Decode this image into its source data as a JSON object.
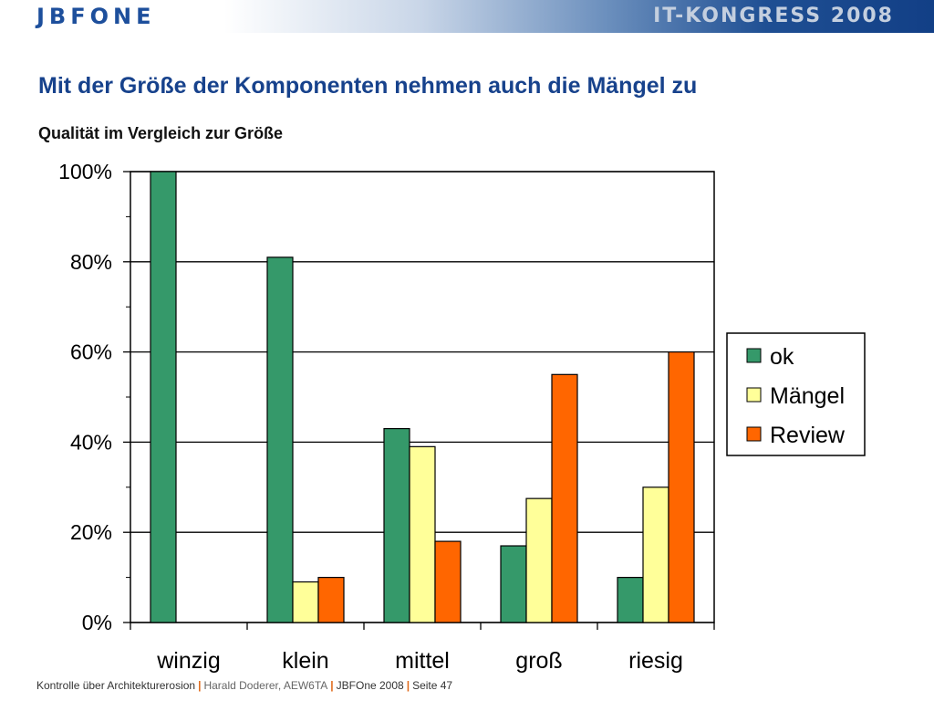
{
  "header": {
    "logo": "JBFONE",
    "event": "IT-KONGRESS 2008"
  },
  "slide": {
    "title": "Mit der Größe der Komponenten nehmen auch die Mängel zu",
    "subtitle": "Qualität im Vergleich zur Größe"
  },
  "chart_data": {
    "type": "bar",
    "title": "Qualität im Vergleich zur Größe",
    "xlabel": "",
    "ylabel": "",
    "categories": [
      "winzig",
      "klein",
      "mittel",
      "groß",
      "riesig"
    ],
    "series": [
      {
        "name": "ok",
        "color": "#35996a",
        "values": [
          100,
          81,
          43,
          17,
          10
        ]
      },
      {
        "name": "Mängel",
        "color": "#ffff99",
        "values": [
          0,
          9,
          39,
          27.5,
          30
        ]
      },
      {
        "name": "Review",
        "color": "#ff6600",
        "values": [
          0,
          10,
          18,
          55,
          60
        ]
      }
    ],
    "ylim": [
      0,
      100
    ],
    "yticks": [
      "0%",
      "20%",
      "40%",
      "60%",
      "80%",
      "100%"
    ],
    "grid": true,
    "legend": "right"
  },
  "footer": {
    "part1": "Kontrolle über Architekturerosion",
    "sep": "|",
    "part2": "Harald Doderer, AEW6TA",
    "part3": "JBFOne 2008",
    "part4": "Seite 47"
  }
}
